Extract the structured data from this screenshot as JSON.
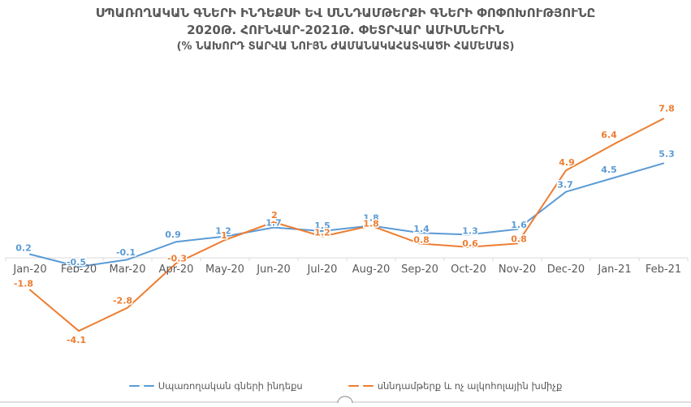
{
  "title": {
    "line1": "ՍՊԱՌՈՂԱԿԱՆ ԳՆԵՐԻ ԻՆԴԵՔՍԻ ԵՎ ՍՆՆԴԱՄԹԵՐՔԻ ԳՆԵՐԻ ՓՈՓՈԽՈՒԹՅՈՒՆԸ",
    "line2": "2020Թ. ՀՈՒՆՎԱՐ-2021Թ. ՓԵՏՐՎԱՐ ԱՄԻՍՆԵՐԻՆ",
    "line3": "(% ՆԱԽՈՐԴ ՏԱՐՎԱ ՆՈՒՅՆ ԺԱՄԱՆԱԿԱՀԱՏՎԱԾԻ ՀԱՄԵՄԱՏ)"
  },
  "chart_data": {
    "type": "line",
    "title": "ՍՊԱՌՈՂԱԿԱՆ ԳՆԵՐԻ ԻՆԴԵՔՍԻ ԵՎ ՍՆՆԴԱՄԹԵՐՔԻ ԳՆԵՐԻ ՓՈՓՈԽՈՒԹՅՈՒՆԸ 2020Թ. ՀՈՒՆՎԱՐ-2021Թ. ՓԵՏՐՎԱՐ ԱՄԻՍՆԵՐԻՆ (% ՆԱԽՈՐԴ ՏԱՐՎԱ ՆՈՒՅՆ ԺԱՄԱՆԱԿԱՀԱՏՎԱԾԻ ՀԱՄԵՄԱՏ)",
    "xlabel": "",
    "ylabel": "",
    "categories": [
      "Jan-20",
      "Feb-20",
      "Mar-20",
      "Apr-20",
      "May-20",
      "Jun-20",
      "Jul-20",
      "Aug-20",
      "Sep-20",
      "Oct-20",
      "Nov-20",
      "Dec-20",
      "Jan-21",
      "Feb-21"
    ],
    "series": [
      {
        "name": "Սպառողական գների ինդեքս",
        "color": "#5B9BD5",
        "values": [
          0.2,
          -0.5,
          -0.1,
          0.9,
          1.2,
          1.7,
          1.5,
          1.8,
          1.4,
          1.3,
          1.6,
          3.7,
          4.5,
          5.3
        ]
      },
      {
        "name": "սննդամթերք և ոչ ալկոհոլային խմիչք",
        "color": "#ED7D31",
        "values": [
          -1.8,
          -4.1,
          -2.8,
          -0.3,
          1,
          2,
          1.2,
          1.8,
          0.8,
          0.6,
          0.8,
          4.9,
          6.4,
          7.8
        ]
      }
    ],
    "ylim": [
      -5,
      9
    ],
    "grid": false,
    "legend_position": "bottom",
    "axis_color": "#D9D9D9",
    "text_color": "#595959",
    "label_offsets": [
      [
        [
          -8,
          -7
        ],
        [
          -3,
          -5
        ],
        [
          -2,
          -8
        ],
        [
          -4,
          -8
        ],
        [
          -2,
          -6
        ],
        [
          0,
          -5
        ],
        [
          0,
          -6
        ],
        [
          0,
          -9
        ],
        [
          2,
          -4
        ],
        [
          2,
          -4
        ],
        [
          2,
          -5
        ],
        [
          -1,
          -8
        ],
        [
          -7,
          -9
        ],
        [
          4,
          -11
        ]
      ],
      [
        [
          -8,
          -7
        ],
        [
          -3,
          12
        ],
        [
          -6,
          -8
        ],
        [
          1,
          -5
        ],
        [
          -1,
          -5
        ],
        [
          1,
          -8
        ],
        [
          0,
          -4
        ],
        [
          0,
          -2
        ],
        [
          2,
          -4
        ],
        [
          2,
          -4
        ],
        [
          2,
          -5
        ],
        [
          1,
          -9
        ],
        [
          -7,
          -10
        ],
        [
          4,
          -12
        ]
      ]
    ]
  }
}
